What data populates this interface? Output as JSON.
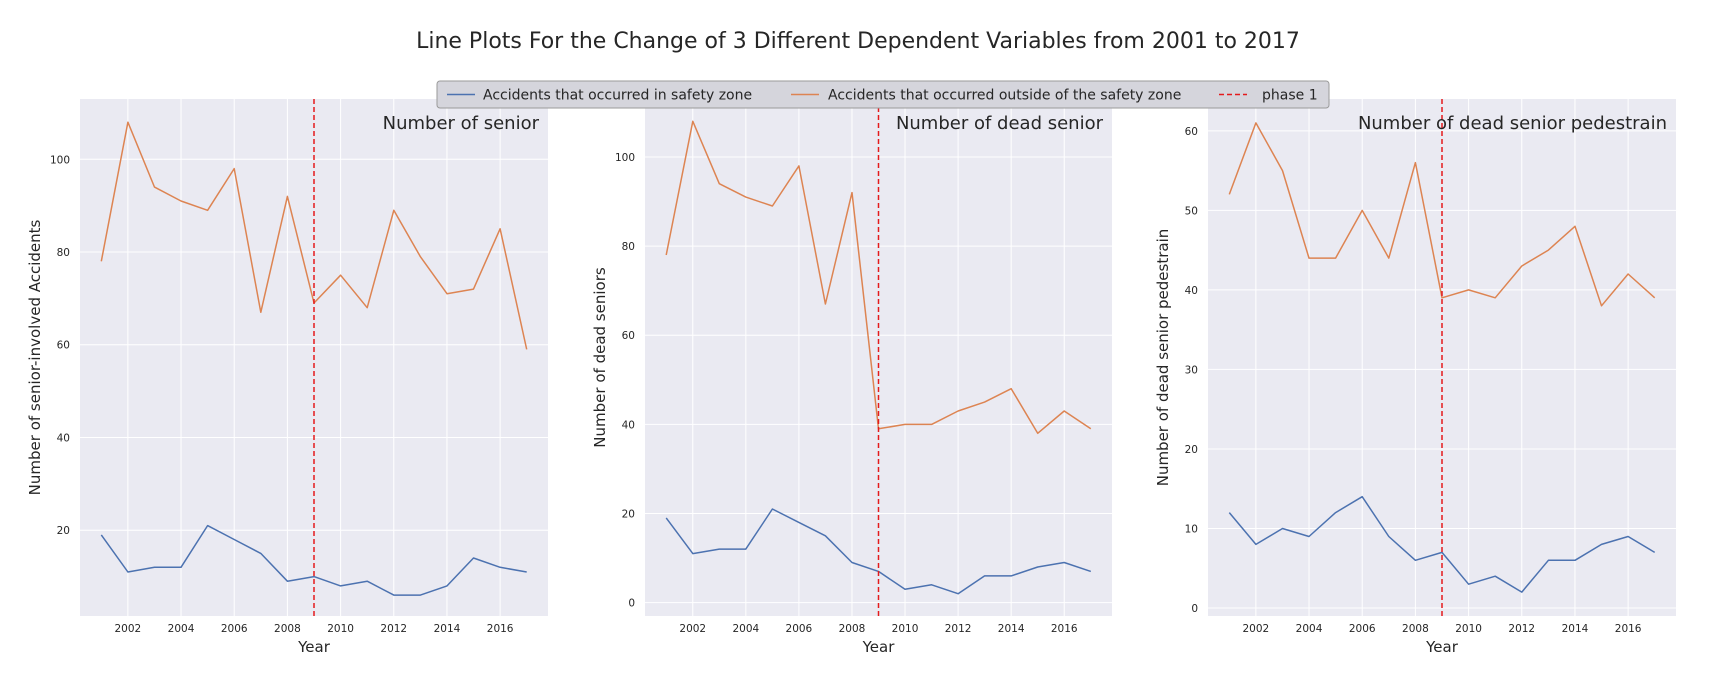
{
  "figure": {
    "title": "Line Plots For the Change of 3 Different Dependent Variables from 2001 to 2017"
  },
  "legend": {
    "placement": "top-center",
    "entries": [
      {
        "label": "Accidents that occurred in safety zone",
        "color": "#4c72b0",
        "style": "solid"
      },
      {
        "label": "Accidents that occurred outside of the safety zone",
        "color": "#dd8452",
        "style": "solid"
      },
      {
        "label": "phase 1",
        "color": "#e41a1c",
        "style": "dashed"
      }
    ]
  },
  "chart_data": [
    {
      "type": "line",
      "title": "Number of senior",
      "xlabel": "Year",
      "ylabel": "Number of senior-involved Accidents",
      "x": [
        2001,
        2002,
        2003,
        2004,
        2005,
        2006,
        2007,
        2008,
        2009,
        2010,
        2011,
        2012,
        2013,
        2014,
        2015,
        2016,
        2017
      ],
      "xlim": [
        2000.2,
        2017.8
      ],
      "ylim": [
        1.5,
        113
      ],
      "xticks": [
        2002,
        2004,
        2006,
        2008,
        2010,
        2012,
        2014,
        2016
      ],
      "yticks": [
        20,
        40,
        60,
        80,
        100
      ],
      "grid": true,
      "vline": {
        "x": 2009,
        "label": "phase 1"
      },
      "series": [
        {
          "name": "Accidents that occurred in safety zone",
          "values": [
            19,
            11,
            12,
            12,
            21,
            18,
            15,
            9,
            10,
            8,
            9,
            6,
            6,
            8,
            14,
            12,
            11
          ]
        },
        {
          "name": "Accidents that occurred outside of the safety zone",
          "values": [
            78,
            108,
            94,
            91,
            89,
            98,
            67,
            92,
            69,
            75,
            68,
            89,
            79,
            71,
            72,
            85,
            59
          ]
        }
      ]
    },
    {
      "type": "line",
      "title": "Number of dead senior",
      "xlabel": "Year",
      "ylabel": "Number of dead seniors",
      "x": [
        2001,
        2002,
        2003,
        2004,
        2005,
        2006,
        2007,
        2008,
        2009,
        2010,
        2011,
        2012,
        2013,
        2014,
        2015,
        2016,
        2017
      ],
      "xlim": [
        2000.2,
        2017.8
      ],
      "ylim": [
        -3,
        113
      ],
      "xticks": [
        2002,
        2004,
        2006,
        2008,
        2010,
        2012,
        2014,
        2016
      ],
      "yticks": [
        0,
        20,
        40,
        60,
        80,
        100
      ],
      "grid": true,
      "vline": {
        "x": 2009,
        "label": "phase 1"
      },
      "series": [
        {
          "name": "Accidents that occurred in safety zone",
          "values": [
            19,
            11,
            12,
            12,
            21,
            18,
            15,
            9,
            7,
            3,
            4,
            2,
            6,
            6,
            8,
            9,
            7
          ]
        },
        {
          "name": "Accidents that occurred outside of the safety zone",
          "values": [
            78,
            108,
            94,
            91,
            89,
            98,
            67,
            92,
            39,
            40,
            40,
            43,
            45,
            48,
            38,
            43,
            39
          ]
        }
      ]
    },
    {
      "type": "line",
      "title": "Number of dead senior pedestrain",
      "xlabel": "Year",
      "ylabel": "Number of dead senior pedestrain",
      "x": [
        2001,
        2002,
        2003,
        2004,
        2005,
        2006,
        2007,
        2008,
        2009,
        2010,
        2011,
        2012,
        2013,
        2014,
        2015,
        2016,
        2017
      ],
      "xlim": [
        2000.2,
        2017.8
      ],
      "ylim": [
        -1,
        64
      ],
      "xticks": [
        2002,
        2004,
        2006,
        2008,
        2010,
        2012,
        2014,
        2016
      ],
      "yticks": [
        0,
        10,
        20,
        30,
        40,
        50,
        60
      ],
      "grid": true,
      "vline": {
        "x": 2009,
        "label": "phase 1"
      },
      "series": [
        {
          "name": "Accidents that occurred in safety zone",
          "values": [
            12,
            8,
            10,
            9,
            12,
            14,
            9,
            6,
            7,
            3,
            4,
            2,
            6,
            6,
            8,
            9,
            7
          ]
        },
        {
          "name": "Accidents that occurred outside of the safety zone",
          "values": [
            52,
            61,
            55,
            44,
            44,
            50,
            44,
            56,
            39,
            40,
            39,
            43,
            45,
            48,
            38,
            42,
            39
          ]
        }
      ]
    }
  ]
}
